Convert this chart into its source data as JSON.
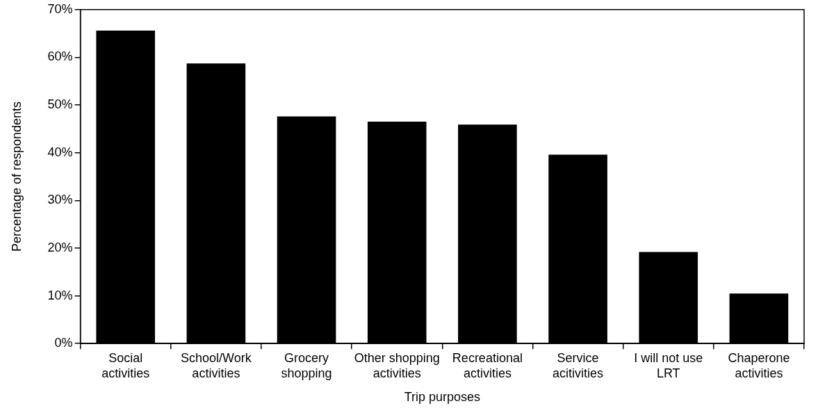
{
  "chart_data": {
    "type": "bar",
    "xlabel": "Trip purposes",
    "ylabel": "Percentage of respondents",
    "categories": [
      "Social activities",
      "School/Work activities",
      "Grocery shopping",
      "Other shopping activities",
      "Recreational activities",
      "Service acitivities",
      "I will not use LRT",
      "Chaperone activities"
    ],
    "values": [
      65.6,
      58.7,
      47.6,
      46.5,
      45.9,
      39.6,
      19.2,
      10.5
    ],
    "color": "#000000",
    "ylim": [
      0,
      70
    ],
    "yticks": [
      {
        "value": 0,
        "label": "0%"
      },
      {
        "value": 10,
        "label": "10%"
      },
      {
        "value": 20,
        "label": "20%"
      },
      {
        "value": 30,
        "label": "30%"
      },
      {
        "value": 40,
        "label": "40%"
      },
      {
        "value": 50,
        "label": "50%"
      },
      {
        "value": 60,
        "label": "60%"
      },
      {
        "value": 70,
        "label": "70%"
      }
    ],
    "legend": false
  }
}
